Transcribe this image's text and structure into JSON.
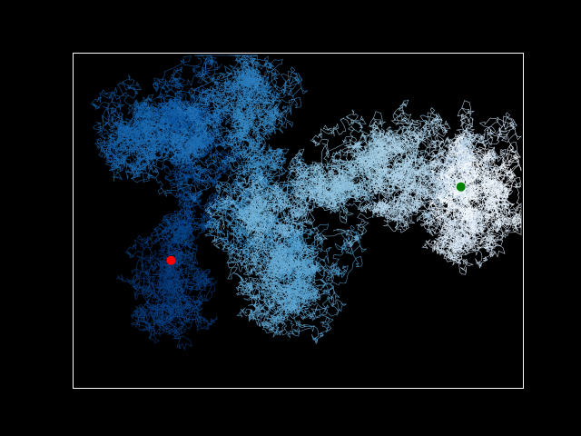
{
  "chart_data": {
    "type": "scatter",
    "title": "",
    "xlabel": "",
    "ylabel": "",
    "grid": false,
    "legend": "none",
    "axes_visible": false,
    "colormap": "Blues_r",
    "background_color": "#000000",
    "frame_color": "#ffffff",
    "xlim": [
      0,
      100
    ],
    "ylim": [
      0,
      75
    ],
    "random_walk": {
      "path": [
        [
          21.7,
          28.6
        ],
        [
          19.5,
          16.1
        ],
        [
          28.5,
          47.6
        ],
        [
          23.9,
          65.1
        ],
        [
          9.9,
          55.5
        ],
        [
          23.9,
          51.9
        ],
        [
          37.3,
          71.9
        ],
        [
          42.8,
          56.2
        ],
        [
          36.1,
          37.6
        ],
        [
          54.4,
          26.4
        ],
        [
          45.8,
          17.1
        ],
        [
          38.7,
          38.7
        ],
        [
          56.8,
          42.2
        ],
        [
          60.8,
          49.8
        ],
        [
          75.0,
          53.3
        ],
        [
          72.4,
          40.7
        ],
        [
          89.6,
          55.4
        ],
        [
          84.2,
          31.9
        ],
        [
          93.5,
          43.1
        ],
        [
          86.2,
          45.1
        ]
      ],
      "steps_per_segment": 2200,
      "jitter": 0.9
    },
    "start_point": {
      "x": 21.7,
      "y": 28.6,
      "color": "#ff0000"
    },
    "end_point": {
      "x": 86.2,
      "y": 45.1,
      "color": "#008000"
    }
  }
}
